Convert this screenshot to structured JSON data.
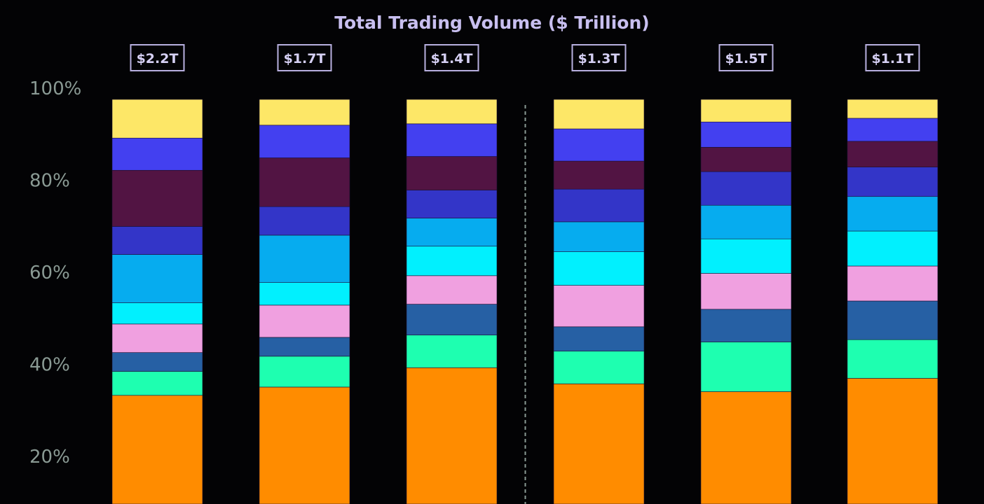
{
  "chart_data": {
    "type": "bar",
    "stacked": true,
    "normalized": true,
    "title": "Total Trading Volume ($ Trillion)",
    "categories": [
      "",
      "",
      "",
      "",
      "",
      ""
    ],
    "totals": [
      "$2.2T",
      "$1.7T",
      "$1.4T",
      "$1.3T",
      "$1.5T",
      "$1.1T"
    ],
    "y_ticks": [
      "20%",
      "40%",
      "60%",
      "80%",
      "100%"
    ],
    "ylim": [
      0,
      100
    ],
    "grid": false,
    "divider_after_index": 2,
    "series": [
      {
        "color": "#ff8c00",
        "values": [
          35.7,
          37.5,
          41.7,
          38.2,
          36.5,
          39.4
        ]
      },
      {
        "color": "#1effb0",
        "values": [
          5.2,
          6.7,
          7.1,
          7.1,
          10.8,
          8.4
        ]
      },
      {
        "color": "#2660a4",
        "values": [
          4.1,
          4.1,
          6.7,
          5.3,
          7.1,
          8.4
        ]
      },
      {
        "color": "#f0a0e0",
        "values": [
          6.2,
          7.0,
          6.2,
          9.0,
          7.8,
          7.6
        ]
      },
      {
        "color": "#01f0fe",
        "values": [
          4.6,
          4.9,
          6.4,
          7.3,
          7.5,
          7.6
        ]
      },
      {
        "color": "#06acef",
        "values": [
          10.5,
          10.3,
          6.1,
          6.5,
          7.3,
          7.5
        ]
      },
      {
        "color": "#3335c8",
        "values": [
          6.1,
          6.2,
          6.1,
          7.1,
          7.3,
          6.4
        ]
      },
      {
        "color": "#521443",
        "values": [
          12.2,
          10.6,
          7.3,
          6.1,
          5.3,
          5.6
        ]
      },
      {
        "color": "#4340f0",
        "values": [
          7.0,
          7.1,
          7.1,
          7.0,
          5.5,
          5.0
        ]
      },
      {
        "color": "#fde767",
        "values": [
          8.4,
          5.6,
          5.3,
          6.4,
          4.9,
          4.1
        ]
      }
    ]
  }
}
